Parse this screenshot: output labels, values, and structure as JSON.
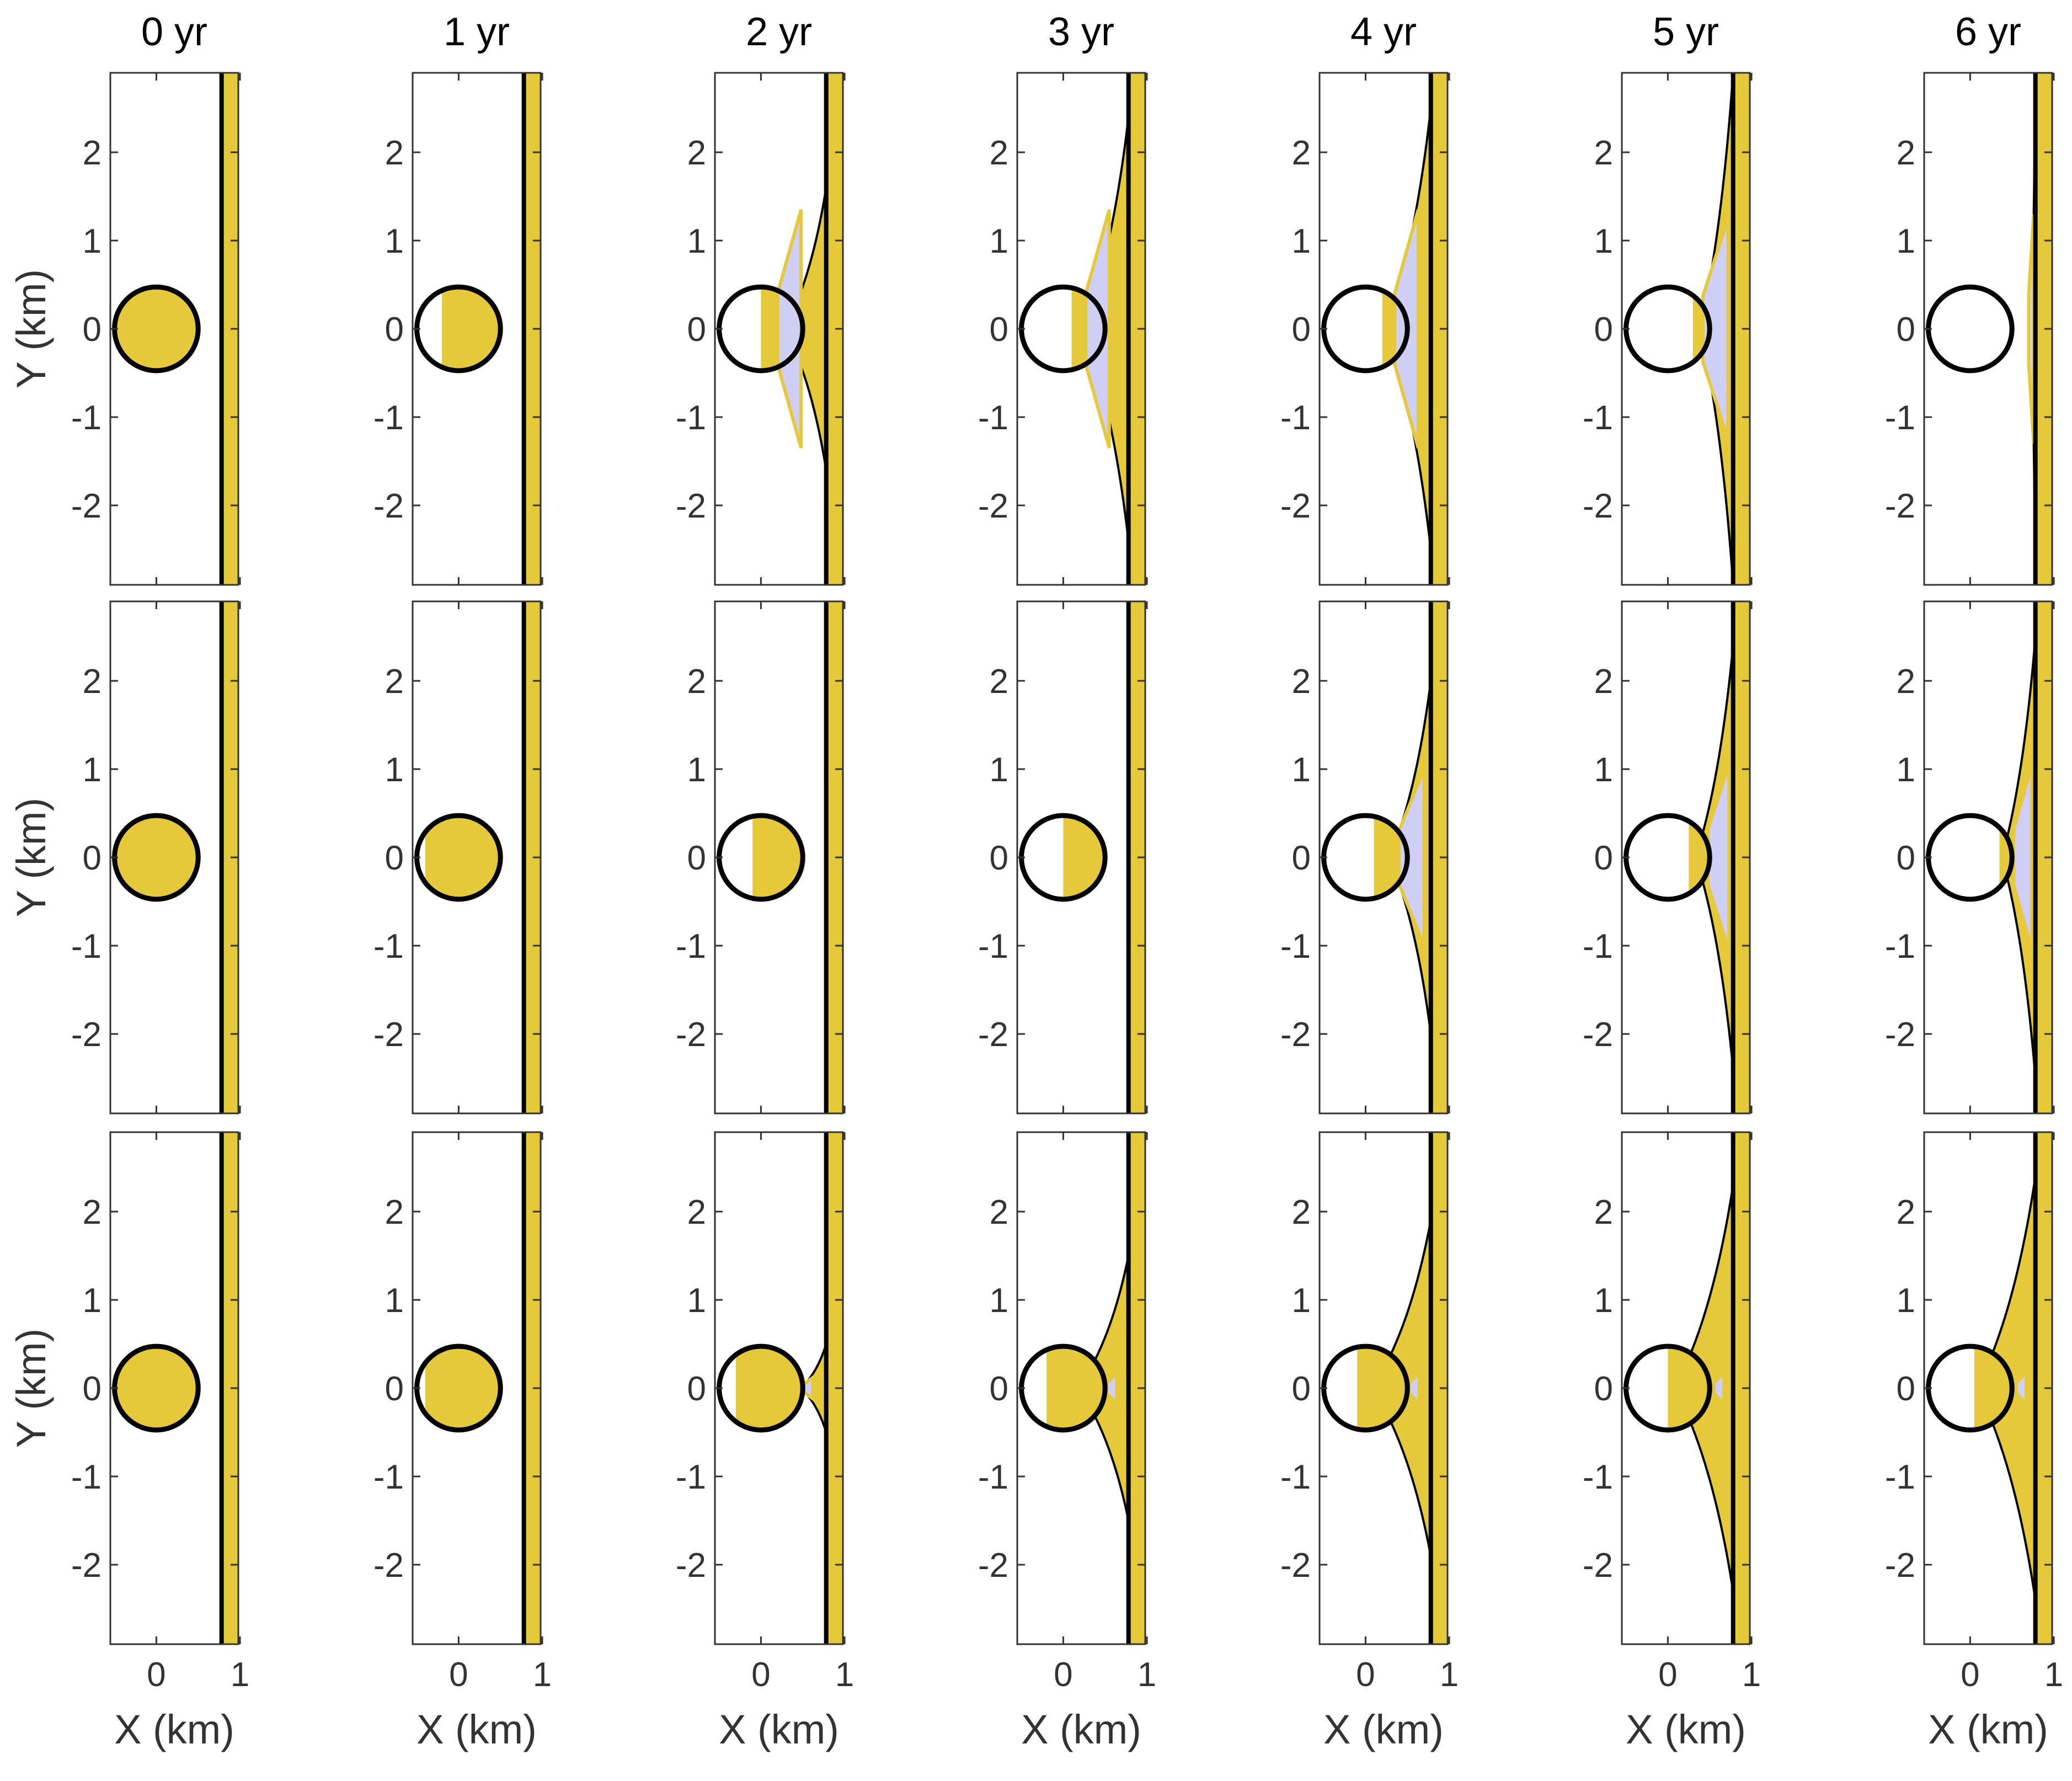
{
  "figure": {
    "column_titles": [
      "0 yr",
      "1 yr",
      "2 yr",
      "3 yr",
      "4 yr",
      "5 yr",
      "6 yr"
    ],
    "xlabel": "X (km)",
    "ylabel": "Y (km)",
    "xticks": [
      0,
      1
    ],
    "yticks": [
      2,
      1,
      0,
      -1,
      -2
    ]
  },
  "colors": {
    "yellow_fill": "#e5c93a",
    "blue_fill": "#cfcff6",
    "outline": "#000000",
    "axis": "#333333"
  },
  "chart_data": {
    "type": "small-multiples shape plot",
    "rows": 3,
    "columns": 7,
    "xlim": [
      -0.55,
      0.98
    ],
    "ylim": [
      -2.9,
      2.9
    ],
    "circle": {
      "center_x": 0,
      "center_y": 0,
      "radius_km": 0.5
    },
    "boundary_x": 0.78,
    "panels": [
      [
        {
          "time": "0 yr",
          "circle_filled": 1,
          "yellow_w": 0,
          "yellow_h": 0,
          "blue_x": 0,
          "blue_h": 0,
          "blue_w": 0
        },
        {
          "time": "1 yr",
          "circle_filled": 0.7,
          "yellow_w": 0,
          "yellow_h": 0.9,
          "blue_x": 0,
          "blue_h": 0,
          "blue_w": 0
        },
        {
          "time": "2 yr",
          "circle_filled": 0.5,
          "yellow_w": 0.5,
          "yellow_h": 1.6,
          "blue_x": 0.2,
          "blue_h": 1.35,
          "blue_w": 0.28
        },
        {
          "time": "3 yr",
          "circle_filled": 0.4,
          "yellow_w": 0.55,
          "yellow_h": 2.4,
          "blue_x": 0.27,
          "blue_h": 1.35,
          "blue_w": 0.28
        },
        {
          "time": "4 yr",
          "circle_filled": 0.3,
          "yellow_w": 0.55,
          "yellow_h": 2.5,
          "blue_x": 0.35,
          "blue_h": 1.35,
          "blue_w": 0.28
        },
        {
          "time": "5 yr",
          "circle_filled": 0.2,
          "yellow_w": 0.4,
          "yellow_h": 2.9,
          "blue_x": 0.42,
          "blue_h": 1.25,
          "blue_w": 0.3
        },
        {
          "time": "6 yr",
          "circle_filled": 0,
          "yellow_w": 0.05,
          "yellow_h": 2.9,
          "blue_x": 0.7,
          "blue_h": 1.3,
          "blue_w": 0.06
        }
      ],
      [
        {
          "time": "0 yr",
          "circle_filled": 1,
          "yellow_w": 0,
          "yellow_h": 0,
          "blue_x": 0,
          "blue_h": 0,
          "blue_w": 0
        },
        {
          "time": "1 yr",
          "circle_filled": 0.9,
          "yellow_w": 0,
          "yellow_h": 0.65,
          "blue_x": 0,
          "blue_h": 0,
          "blue_w": 0
        },
        {
          "time": "2 yr",
          "circle_filled": 0.6,
          "yellow_w": 0,
          "yellow_h": 0.9,
          "blue_x": 0,
          "blue_h": 0,
          "blue_w": 0
        },
        {
          "time": "3 yr",
          "circle_filled": 0.5,
          "yellow_w": 0,
          "yellow_h": 1.3,
          "blue_x": 0,
          "blue_h": 0,
          "blue_w": 0
        },
        {
          "time": "4 yr",
          "circle_filled": 0.4,
          "yellow_w": 0.5,
          "yellow_h": 2.0,
          "blue_x": 0.4,
          "blue_h": 1.0,
          "blue_w": 0.3
        },
        {
          "time": "5 yr",
          "circle_filled": 0.25,
          "yellow_w": 0.45,
          "yellow_h": 2.4,
          "blue_x": 0.48,
          "blue_h": 1.05,
          "blue_w": 0.25
        },
        {
          "time": "6 yr",
          "circle_filled": 0.15,
          "yellow_w": 0.4,
          "yellow_h": 2.5,
          "blue_x": 0.52,
          "blue_h": 1.05,
          "blue_w": 0.22
        }
      ],
      [
        {
          "time": "0 yr",
          "circle_filled": 1,
          "yellow_w": 0,
          "yellow_h": 0,
          "blue_x": 0,
          "blue_h": 0,
          "blue_w": 0
        },
        {
          "time": "1 yr",
          "circle_filled": 0.9,
          "yellow_w": 0,
          "yellow_h": 0.5,
          "blue_x": 0,
          "blue_h": 0,
          "blue_w": 0
        },
        {
          "time": "2 yr",
          "circle_filled": 0.8,
          "yellow_w": 0.3,
          "yellow_h": 0.5,
          "blue_x": 0.5,
          "blue_h": 0.12,
          "blue_w": 0.12
        },
        {
          "time": "3 yr",
          "circle_filled": 0.7,
          "yellow_w": 0.6,
          "yellow_h": 1.5,
          "blue_x": 0.52,
          "blue_h": 0.18,
          "blue_w": 0.12
        },
        {
          "time": "4 yr",
          "circle_filled": 0.6,
          "yellow_w": 0.7,
          "yellow_h": 1.9,
          "blue_x": 0.52,
          "blue_h": 0.18,
          "blue_w": 0.12
        },
        {
          "time": "5 yr",
          "circle_filled": 0.5,
          "yellow_w": 0.7,
          "yellow_h": 2.3,
          "blue_x": 0.55,
          "blue_h": 0.18,
          "blue_w": 0.12
        },
        {
          "time": "6 yr",
          "circle_filled": 0.45,
          "yellow_w": 0.7,
          "yellow_h": 2.4,
          "blue_x": 0.55,
          "blue_h": 0.18,
          "blue_w": 0.12
        }
      ]
    ]
  }
}
